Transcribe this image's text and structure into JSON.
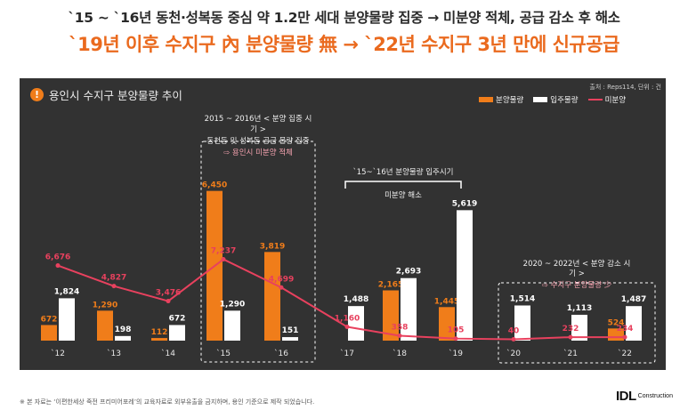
{
  "header": {
    "line1": "`15 ~ `16년 동천·성복동 중심 약 1.2만 세대 분양물량 집중 → 미분양 적체, 공급 감소 후 해소",
    "line2": "`19년 이후 수지구 內 분양물량 無 → `22년 수지구 3년 만에 신규공급"
  },
  "panel": {
    "title": "용인시 수지구 분양물량 추이",
    "source": "출처 : Reps114, 단위 : 건"
  },
  "colors": {
    "background": "#323232",
    "supply_bar": "#f07d1a",
    "movein_bar": "#ffffff",
    "unsold_line": "#e8415e",
    "accent": "#ea6a1e"
  },
  "chart_data": {
    "type": "bar",
    "title": "용인시 수지구 분양물량 추이",
    "categories": [
      "`12",
      "`13",
      "`14",
      "`15",
      "`16",
      "`17",
      "`18",
      "`19",
      "`20",
      "`21",
      "`22"
    ],
    "series": [
      {
        "name": "분양물량",
        "kind": "bar",
        "values": [
          672,
          1290,
          112,
          6450,
          3819,
          null,
          2165,
          1445,
          null,
          null,
          524
        ]
      },
      {
        "name": "입주물량",
        "kind": "bar",
        "values": [
          1824,
          198,
          672,
          1290,
          151,
          1488,
          2693,
          5619,
          1514,
          1113,
          1487
        ]
      },
      {
        "name": "미분양",
        "kind": "line",
        "values": [
          6676,
          4827,
          3476,
          7237,
          4699,
          1160,
          358,
          105,
          40,
          232,
          234
        ]
      }
    ],
    "legend_position": "top-right",
    "grid": false,
    "annotations": [
      {
        "text": [
          "2015 ~ 2016년 < 분양 집중 시",
          "기 >",
          "동천동 및 성복동 공급 물량 집중"
        ],
        "highlight": "⇨ 용인시 미분양 적체"
      },
      {
        "text": [
          "`15~`16년 분양물량 입주시기"
        ],
        "highlight": "미분양 해소"
      },
      {
        "text": [
          "2020 ~ 2022년 < 분양 감소 시",
          "기 >"
        ],
        "highlight": "⇨ 수지구 분양물량 少"
      }
    ]
  },
  "footer": {
    "note": "※ 본 자료는 ‘이편한세상 죽전 프리미어포레’의 교육자료로 외부유출을 금지하며, 용인 기준으로 제작 되었습니다.",
    "logo_main": "IDL",
    "logo_sub": "Construction"
  }
}
